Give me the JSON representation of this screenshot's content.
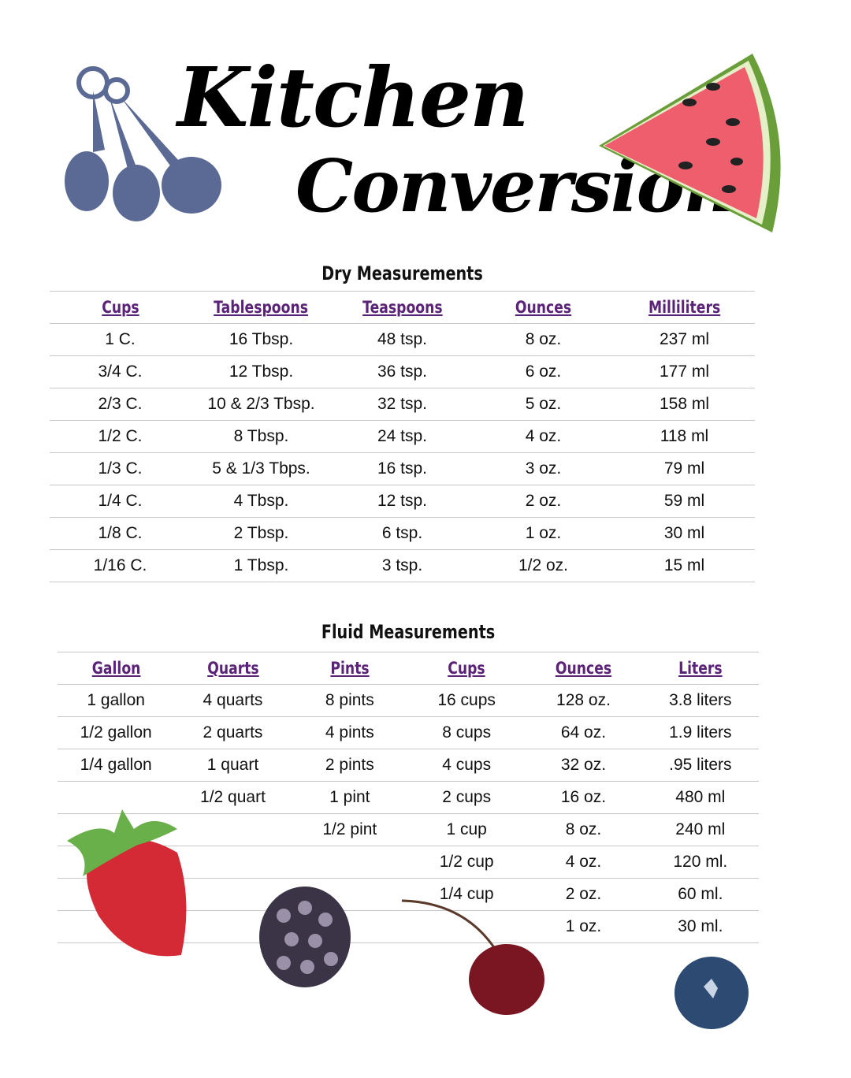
{
  "title": {
    "line1": "Kitchen",
    "line2": "Conversions"
  },
  "colors": {
    "header": "#5b2378",
    "rule": "#c8c8c8",
    "spoons": "#5a6a94"
  },
  "dry": {
    "title": "Dry Measurements",
    "headers": [
      "Cups",
      "Tablespoons",
      "Teaspoons",
      "Ounces",
      "Milliliters"
    ],
    "rows": [
      [
        "1 C.",
        "16 Tbsp.",
        "48 tsp.",
        "8 oz.",
        "237 ml"
      ],
      [
        "3/4 C.",
        "12 Tbsp.",
        "36 tsp.",
        "6 oz.",
        "177 ml"
      ],
      [
        "2/3 C.",
        "10 & 2/3 Tbsp.",
        "32 tsp.",
        "5 oz.",
        "158 ml"
      ],
      [
        "1/2 C.",
        "8 Tbsp.",
        "24 tsp.",
        "4 oz.",
        "118 ml"
      ],
      [
        "1/3 C.",
        "5 & 1/3 Tbps.",
        "16 tsp.",
        "3 oz.",
        "79 ml"
      ],
      [
        "1/4 C.",
        "4 Tbsp.",
        "12 tsp.",
        "2 oz.",
        "59 ml"
      ],
      [
        "1/8 C.",
        "2 Tbsp.",
        "6 tsp.",
        "1 oz.",
        "30 ml"
      ],
      [
        "1/16 C.",
        "1 Tbsp.",
        "3 tsp.",
        "1/2 oz.",
        "15 ml"
      ]
    ]
  },
  "fluid": {
    "title": "Fluid Measurements",
    "headers": [
      "Gallon",
      "Quarts",
      "Pints",
      "Cups",
      "Ounces",
      "Liters"
    ],
    "rows": [
      [
        "1 gallon",
        "4 quarts",
        "8 pints",
        "16 cups",
        "128 oz.",
        "3.8 liters"
      ],
      [
        "1/2 gallon",
        "2 quarts",
        "4 pints",
        "8 cups",
        "64 oz.",
        "1.9 liters"
      ],
      [
        "1/4 gallon",
        "1 quart",
        "2 pints",
        "4 cups",
        "32 oz.",
        ".95 liters"
      ],
      [
        "",
        "1/2 quart",
        "1 pint",
        "2 cups",
        "16 oz.",
        "480 ml"
      ],
      [
        "",
        "",
        "1/2 pint",
        "1 cup",
        "8 oz.",
        "240 ml"
      ],
      [
        "",
        "",
        "",
        "1/2 cup",
        "4 oz.",
        "120 ml."
      ],
      [
        "",
        "",
        "",
        "1/4 cup",
        "2 oz.",
        "60 ml."
      ],
      [
        "",
        "",
        "",
        "",
        "1 oz.",
        "30 ml."
      ]
    ]
  }
}
